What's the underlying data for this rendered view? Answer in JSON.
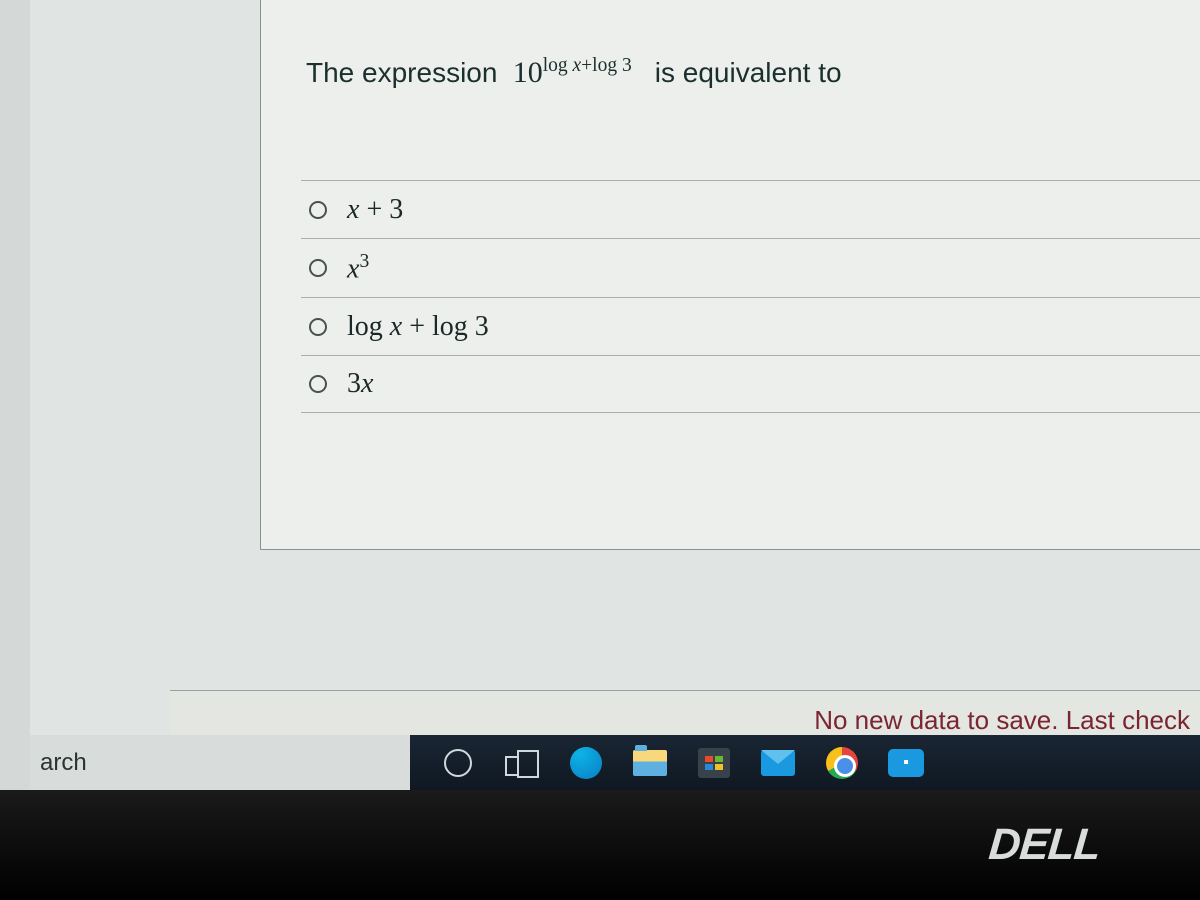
{
  "question": {
    "prefix": "The expression",
    "base": "10",
    "exponent_parts": [
      "log ",
      "x",
      "+log 3"
    ],
    "suffix": "is equivalent to"
  },
  "options": [
    {
      "html": "<span class='upright'> </span>x <span class='upright'>+ 3</span>"
    },
    {
      "html": "x<sup class='upright' style='font-size:0.7em'>3</sup>"
    },
    {
      "html": "<span class='upright'>log </span>x <span class='upright'>+ log 3</span>"
    },
    {
      "html": "<span class='upright'>3</span>x"
    }
  ],
  "status_text": "No new data to save. Last check",
  "search_placeholder": "arch",
  "brand": "DELL"
}
